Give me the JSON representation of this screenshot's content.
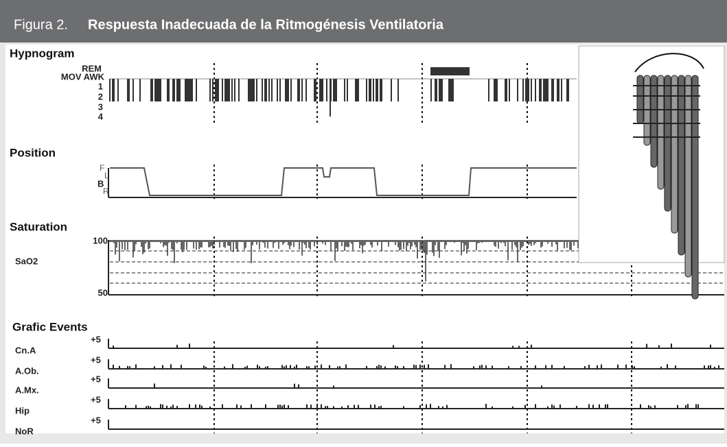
{
  "header": {
    "label": "Figura 2.",
    "title": "Respuesta Inadecuada de la Ritmogénesis Ventilatoria"
  },
  "panels": {
    "hypnogram": {
      "title": "Hypnogram",
      "stages": [
        "REM",
        "MOV AWK",
        "1",
        "2",
        "3",
        "4"
      ]
    },
    "position": {
      "title": "Position",
      "levels": [
        "F",
        "L",
        "B",
        "R"
      ]
    },
    "saturation": {
      "title": "Saturation",
      "channel": "SaO2",
      "scale": [
        "100",
        "50"
      ]
    },
    "events": {
      "title": "Grafic Events",
      "channels": [
        "Cn.A",
        "A.Ob.",
        "A.Mx.",
        "Hip",
        "NoR"
      ],
      "scale": "+5"
    }
  }
}
